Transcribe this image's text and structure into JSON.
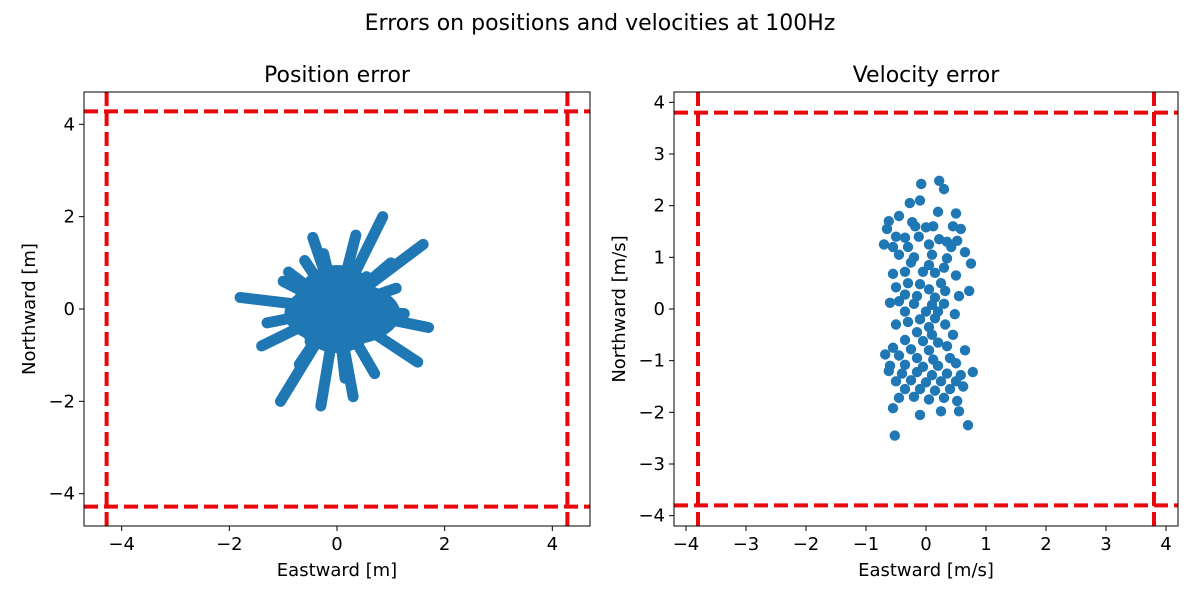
{
  "figure": {
    "suptitle": "Errors on positions and velocities at 100Hz"
  },
  "chart_data": [
    {
      "type": "scatter",
      "title": "Position error",
      "xlabel": "Eastward [m]",
      "ylabel": "Northward [m]",
      "xlim": [
        -4.7,
        4.7
      ],
      "ylim": [
        -4.7,
        4.7
      ],
      "xticks": [
        -4,
        -2,
        0,
        2,
        4
      ],
      "yticks": [
        -4,
        -2,
        0,
        2,
        4
      ],
      "grid": false,
      "marker_color": "#1f77b4",
      "bound_color": "#e8070b",
      "bounds": {
        "x": [
          -4.28,
          4.28
        ],
        "y": [
          -4.28,
          4.28
        ],
        "style": "dashed"
      },
      "streaks": [
        [
          0.0,
          0.0,
          -1.8,
          0.25
        ],
        [
          0.0,
          0.0,
          -0.9,
          0.8
        ],
        [
          0.0,
          0.0,
          -1.4,
          -0.8
        ],
        [
          0.0,
          0.0,
          -1.05,
          -2.0
        ],
        [
          0.0,
          0.0,
          -0.3,
          -2.1
        ],
        [
          0.0,
          0.0,
          0.3,
          -1.9
        ],
        [
          0.0,
          0.0,
          0.85,
          2.0
        ],
        [
          0.0,
          0.0,
          1.6,
          1.4
        ],
        [
          0.0,
          0.0,
          1.7,
          -0.4
        ],
        [
          0.0,
          0.0,
          1.5,
          -1.15
        ],
        [
          0.0,
          0.0,
          -0.45,
          1.55
        ],
        [
          0.0,
          0.0,
          0.35,
          1.6
        ],
        [
          0.0,
          0.0,
          -0.6,
          1.05
        ],
        [
          0.0,
          0.0,
          1.0,
          1.0
        ],
        [
          0.0,
          0.0,
          0.7,
          -1.4
        ],
        [
          0.0,
          0.0,
          -0.7,
          -1.2
        ],
        [
          0.0,
          0.0,
          1.1,
          0.45
        ],
        [
          0.0,
          0.0,
          -1.3,
          -0.3
        ],
        [
          0.0,
          0.0,
          0.15,
          -1.5
        ],
        [
          0.0,
          0.0,
          -0.25,
          1.2
        ],
        [
          0.0,
          0.0,
          0.55,
          0.7
        ],
        [
          0.0,
          0.0,
          -1.0,
          0.6
        ],
        [
          0.0,
          0.0,
          1.25,
          -0.1
        ],
        [
          0.0,
          0.0,
          -0.5,
          -0.7
        ]
      ]
    },
    {
      "type": "scatter",
      "title": "Velocity error",
      "xlabel": "Eastward [m/s]",
      "ylabel": "Northward [m/s]",
      "xlim": [
        -4.2,
        4.2
      ],
      "ylim": [
        -4.2,
        4.2
      ],
      "xticks": [
        -4,
        -3,
        -2,
        -1,
        0,
        1,
        2,
        3,
        4
      ],
      "yticks": [
        -4,
        -3,
        -2,
        -1,
        0,
        1,
        2,
        3,
        4
      ],
      "grid": false,
      "marker_color": "#1f77b4",
      "bound_color": "#e8070b",
      "bounds": {
        "x": [
          -3.8,
          3.8
        ],
        "y": [
          -3.8,
          3.8
        ],
        "style": "dashed"
      },
      "points": [
        [
          -0.08,
          2.42
        ],
        [
          0.22,
          2.48
        ],
        [
          0.3,
          2.32
        ],
        [
          -0.27,
          2.05
        ],
        [
          -0.1,
          2.1
        ],
        [
          0.2,
          1.88
        ],
        [
          0.5,
          1.85
        ],
        [
          -0.45,
          1.8
        ],
        [
          -0.62,
          1.7
        ],
        [
          -0.23,
          1.68
        ],
        [
          -0.18,
          1.6
        ],
        [
          0.0,
          1.58
        ],
        [
          0.12,
          1.6
        ],
        [
          0.45,
          1.6
        ],
        [
          0.58,
          1.55
        ],
        [
          -0.65,
          1.55
        ],
        [
          -0.5,
          1.4
        ],
        [
          -0.35,
          1.38
        ],
        [
          -0.12,
          1.4
        ],
        [
          0.22,
          1.35
        ],
        [
          0.35,
          1.3
        ],
        [
          0.52,
          1.32
        ],
        [
          -0.7,
          1.25
        ],
        [
          -0.55,
          1.2
        ],
        [
          -0.3,
          1.2
        ],
        [
          0.05,
          1.25
        ],
        [
          0.42,
          1.2
        ],
        [
          0.65,
          1.1
        ],
        [
          -0.45,
          1.05
        ],
        [
          -0.2,
          1.0
        ],
        [
          0.1,
          1.05
        ],
        [
          0.35,
          0.98
        ],
        [
          0.75,
          0.88
        ],
        [
          -0.25,
          0.9
        ],
        [
          0.05,
          0.85
        ],
        [
          0.3,
          0.8
        ],
        [
          -0.55,
          0.68
        ],
        [
          -0.35,
          0.72
        ],
        [
          -0.05,
          0.72
        ],
        [
          0.15,
          0.7
        ],
        [
          0.5,
          0.65
        ],
        [
          -0.3,
          0.5
        ],
        [
          -0.1,
          0.48
        ],
        [
          0.25,
          0.5
        ],
        [
          -0.5,
          0.42
        ],
        [
          0.05,
          0.38
        ],
        [
          0.32,
          0.35
        ],
        [
          0.72,
          0.35
        ],
        [
          -0.35,
          0.28
        ],
        [
          -0.15,
          0.25
        ],
        [
          0.15,
          0.22
        ],
        [
          0.55,
          0.25
        ],
        [
          -0.6,
          0.12
        ],
        [
          -0.45,
          0.15
        ],
        [
          -0.2,
          0.1
        ],
        [
          0.1,
          0.08
        ],
        [
          0.3,
          0.1
        ],
        [
          -0.35,
          -0.05
        ],
        [
          0.0,
          -0.05
        ],
        [
          0.2,
          -0.05
        ],
        [
          0.48,
          -0.1
        ],
        [
          -0.1,
          -0.2
        ],
        [
          0.15,
          -0.18
        ],
        [
          -0.5,
          -0.3
        ],
        [
          -0.3,
          -0.25
        ],
        [
          0.05,
          -0.35
        ],
        [
          0.32,
          -0.3
        ],
        [
          -0.15,
          -0.45
        ],
        [
          0.1,
          -0.5
        ],
        [
          0.45,
          -0.5
        ],
        [
          -0.35,
          -0.6
        ],
        [
          -0.05,
          -0.62
        ],
        [
          0.2,
          -0.65
        ],
        [
          -0.55,
          -0.75
        ],
        [
          -0.25,
          -0.78
        ],
        [
          0.05,
          -0.8
        ],
        [
          0.35,
          -0.72
        ],
        [
          0.65,
          -0.8
        ],
        [
          -0.68,
          -0.88
        ],
        [
          -0.45,
          -0.9
        ],
        [
          -0.15,
          -0.95
        ],
        [
          0.12,
          -0.98
        ],
        [
          0.4,
          -0.95
        ],
        [
          -0.6,
          -1.1
        ],
        [
          -0.35,
          -1.08
        ],
        [
          -0.05,
          -1.12
        ],
        [
          0.2,
          -1.1
        ],
        [
          0.5,
          -1.05
        ],
        [
          -0.62,
          -1.2
        ],
        [
          -0.4,
          -1.25
        ],
        [
          -0.15,
          -1.22
        ],
        [
          0.1,
          -1.28
        ],
        [
          0.35,
          -1.25
        ],
        [
          0.58,
          -1.28
        ],
        [
          0.78,
          -1.22
        ],
        [
          -0.5,
          -1.4
        ],
        [
          -0.25,
          -1.38
        ],
        [
          0.0,
          -1.42
        ],
        [
          0.25,
          -1.4
        ],
        [
          0.5,
          -1.4
        ],
        [
          -0.35,
          -1.55
        ],
        [
          -0.1,
          -1.55
        ],
        [
          0.15,
          -1.58
        ],
        [
          0.4,
          -1.55
        ],
        [
          0.62,
          -1.5
        ],
        [
          -0.45,
          -1.72
        ],
        [
          -0.2,
          -1.7
        ],
        [
          0.05,
          -1.75
        ],
        [
          0.3,
          -1.72
        ],
        [
          0.52,
          -1.78
        ],
        [
          -0.55,
          -1.92
        ],
        [
          -0.1,
          -2.05
        ],
        [
          0.25,
          -1.98
        ],
        [
          0.55,
          -1.98
        ],
        [
          0.7,
          -2.25
        ],
        [
          -0.52,
          -2.45
        ]
      ]
    }
  ]
}
